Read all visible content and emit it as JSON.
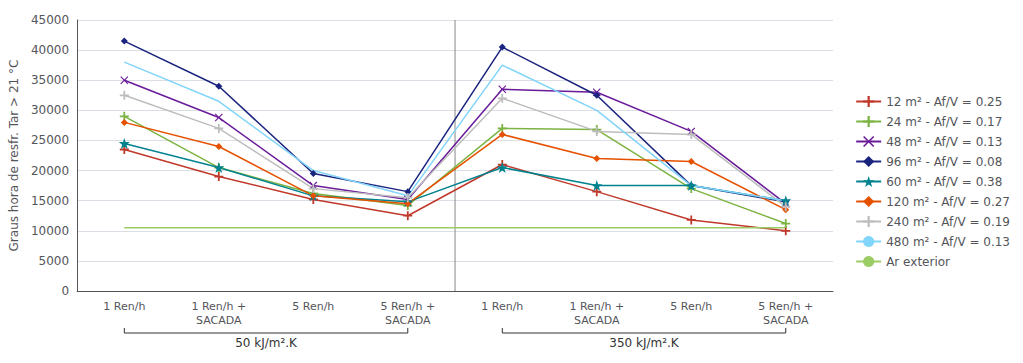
{
  "chart_data": {
    "type": "line",
    "categories": [
      "1 Ren/h",
      "1 Ren/h +\nSACADA",
      "5 Ren/h",
      "5 Ren/h +\nSACADA",
      "1 Ren/h",
      "1 Ren/h +\nSACADA",
      "5 Ren/h",
      "5 Ren/h +\nSACADA"
    ],
    "group_labels": [
      "50 kJ/m².K",
      "350 kJ/m².K"
    ],
    "series": [
      {
        "name": "12 m² - Af/V = 0.25",
        "color": "#C0392B",
        "marker": "plus",
        "values": [
          23500,
          19000,
          15200,
          12500,
          21000,
          16500,
          11800,
          10000
        ]
      },
      {
        "name": "24 m² - Af/V = 0.17",
        "color": "#7CB342",
        "marker": "plus",
        "values": [
          29000,
          20500,
          16200,
          14200,
          27000,
          26800,
          17000,
          11200
        ]
      },
      {
        "name": "48 m² - Af/V = 0.13",
        "color": "#6A1B9A",
        "marker": "x",
        "values": [
          35000,
          28800,
          17500,
          15200,
          33500,
          33000,
          26500,
          14500
        ]
      },
      {
        "name": "96 m² - Af/V = 0.08",
        "color": "#1A237E",
        "marker": "diamond",
        "values": [
          41500,
          34000,
          19500,
          16500,
          40500,
          32500,
          17500,
          14800
        ]
      },
      {
        "name": "60 m² - Af/V = 0.38",
        "color": "#00838F",
        "marker": "star",
        "values": [
          24500,
          20500,
          15800,
          14800,
          20500,
          17500,
          17500,
          15000
        ]
      },
      {
        "name": "120 m² - Af/V = 0.27",
        "color": "#E65100",
        "marker": "diamond",
        "values": [
          28000,
          24000,
          15800,
          14500,
          26000,
          22000,
          21500,
          13500
        ]
      },
      {
        "name": "240 m² - Af/V = 0.19",
        "color": "#BDBDBD",
        "marker": "plus",
        "values": [
          32500,
          27000,
          17000,
          15500,
          32000,
          26500,
          26000,
          14000
        ]
      },
      {
        "name": "480 m² - Af/V = 0.13",
        "color": "#81D4FA",
        "marker": "none",
        "values": [
          38000,
          31500,
          20000,
          15800,
          37500,
          30000,
          17500,
          15000
        ]
      },
      {
        "name": "Ar exterior",
        "color": "#9CCC65",
        "marker": "none",
        "values": [
          10500,
          10500,
          10500,
          10500,
          10500,
          10500,
          10500,
          10500
        ]
      }
    ],
    "ylabel": "Graus hora de resfr. Tar > 21 °C",
    "ylim": [
      0,
      45000
    ],
    "yticks": [
      0,
      5000,
      10000,
      15000,
      20000,
      25000,
      30000,
      35000,
      40000,
      45000
    ],
    "grid": true,
    "legend": "right"
  }
}
